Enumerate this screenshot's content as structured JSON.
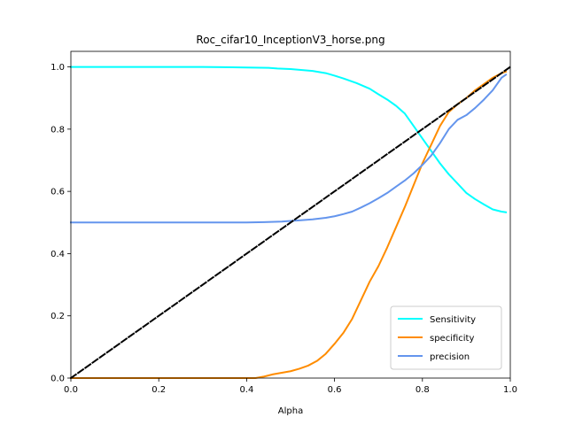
{
  "chart_data": {
    "type": "line",
    "title": "Roc_cifar10_InceptionV3_horse.png",
    "xlabel": "Alpha",
    "ylabel": "",
    "xlim": [
      0,
      1
    ],
    "ylim": [
      0,
      1.05
    ],
    "xticks": [
      "0.0",
      "0.2",
      "0.4",
      "0.6",
      "0.8",
      "1.0"
    ],
    "yticks": [
      "0.0",
      "0.2",
      "0.4",
      "0.6",
      "0.8",
      "1.0"
    ],
    "legend_position": "lower-right",
    "grid": false,
    "series": [
      {
        "name": "Sensitivity",
        "color": "#00ffff",
        "x": [
          0.0,
          0.1,
          0.2,
          0.3,
          0.35,
          0.4,
          0.45,
          0.47,
          0.5,
          0.55,
          0.58,
          0.6,
          0.62,
          0.65,
          0.68,
          0.7,
          0.72,
          0.74,
          0.76,
          0.78,
          0.8,
          0.82,
          0.84,
          0.86,
          0.88,
          0.9,
          0.92,
          0.94,
          0.96,
          0.98,
          0.99
        ],
        "y": [
          1.0,
          1.0,
          1.0,
          1.0,
          0.999,
          0.998,
          0.997,
          0.995,
          0.993,
          0.987,
          0.98,
          0.972,
          0.963,
          0.948,
          0.93,
          0.912,
          0.895,
          0.875,
          0.85,
          0.81,
          0.77,
          0.73,
          0.69,
          0.655,
          0.625,
          0.595,
          0.575,
          0.558,
          0.542,
          0.535,
          0.533
        ]
      },
      {
        "name": "specificity",
        "color": "#ff8c00",
        "x": [
          0.0,
          0.1,
          0.2,
          0.3,
          0.4,
          0.42,
          0.44,
          0.46,
          0.48,
          0.5,
          0.52,
          0.54,
          0.56,
          0.58,
          0.6,
          0.62,
          0.64,
          0.66,
          0.68,
          0.7,
          0.72,
          0.74,
          0.76,
          0.78,
          0.8,
          0.82,
          0.84,
          0.86,
          0.88,
          0.9,
          0.92,
          0.94,
          0.96,
          0.98,
          0.99
        ],
        "y": [
          0.0,
          0.0,
          0.0,
          0.0,
          0.0,
          0.0,
          0.005,
          0.012,
          0.017,
          0.022,
          0.03,
          0.04,
          0.055,
          0.078,
          0.11,
          0.145,
          0.19,
          0.25,
          0.31,
          0.36,
          0.42,
          0.485,
          0.55,
          0.62,
          0.69,
          0.75,
          0.81,
          0.855,
          0.88,
          0.9,
          0.925,
          0.945,
          0.965,
          0.98,
          0.985
        ]
      },
      {
        "name": "precision",
        "color": "#6495ed",
        "x": [
          0.0,
          0.1,
          0.2,
          0.3,
          0.4,
          0.44,
          0.48,
          0.5,
          0.52,
          0.55,
          0.58,
          0.6,
          0.62,
          0.64,
          0.66,
          0.68,
          0.7,
          0.72,
          0.74,
          0.76,
          0.78,
          0.8,
          0.82,
          0.84,
          0.86,
          0.88,
          0.9,
          0.92,
          0.94,
          0.96,
          0.98,
          0.99
        ],
        "y": [
          0.5,
          0.5,
          0.5,
          0.5,
          0.5,
          0.501,
          0.503,
          0.505,
          0.507,
          0.51,
          0.515,
          0.52,
          0.527,
          0.535,
          0.548,
          0.562,
          0.578,
          0.595,
          0.615,
          0.635,
          0.658,
          0.685,
          0.715,
          0.755,
          0.8,
          0.83,
          0.845,
          0.868,
          0.895,
          0.925,
          0.965,
          0.975
        ]
      },
      {
        "name": "",
        "color": "#000000",
        "dashed": true,
        "x": [
          0.0,
          1.0
        ],
        "y": [
          0.0,
          1.0
        ]
      }
    ]
  }
}
